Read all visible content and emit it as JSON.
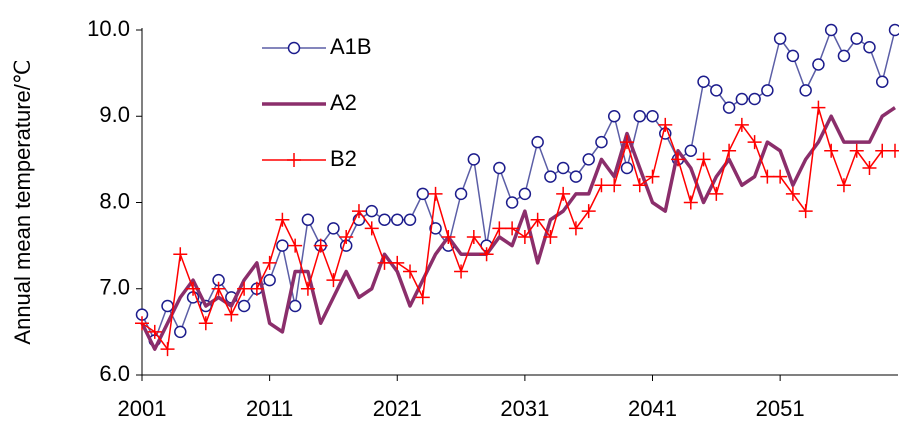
{
  "chart_data": {
    "type": "line",
    "y_label": "Annual mean temperature/℃",
    "x": [
      2001,
      2002,
      2003,
      2004,
      2005,
      2006,
      2007,
      2008,
      2009,
      2010,
      2011,
      2012,
      2013,
      2014,
      2015,
      2016,
      2017,
      2018,
      2019,
      2020,
      2021,
      2022,
      2023,
      2024,
      2025,
      2026,
      2027,
      2028,
      2029,
      2030,
      2031,
      2032,
      2033,
      2034,
      2035,
      2036,
      2037,
      2038,
      2039,
      2040,
      2041,
      2042,
      2043,
      2044,
      2045,
      2046,
      2047,
      2048,
      2049,
      2050,
      2051,
      2052,
      2053,
      2054,
      2055,
      2056,
      2057,
      2058,
      2059,
      2060
    ],
    "series": [
      {
        "name": "A1B",
        "color": "#5b5ea6",
        "marker": "circle",
        "marker_color": "#1c1c8c",
        "line_width": 1.5,
        "values": [
          6.7,
          6.4,
          6.8,
          6.5,
          6.9,
          6.8,
          7.1,
          6.9,
          6.8,
          7.0,
          7.1,
          7.5,
          6.8,
          7.8,
          7.5,
          7.7,
          7.5,
          7.8,
          7.9,
          7.8,
          7.8,
          7.8,
          8.1,
          7.7,
          7.5,
          8.1,
          8.5,
          7.5,
          8.4,
          8.0,
          8.1,
          8.7,
          8.3,
          8.4,
          8.3,
          8.5,
          8.7,
          9.0,
          8.4,
          9.0,
          9.0,
          8.8,
          8.5,
          8.6,
          9.4,
          9.3,
          9.1,
          9.2,
          9.2,
          9.3,
          9.9,
          9.7,
          9.3,
          9.6,
          10.0,
          9.7,
          9.9,
          9.8,
          9.4,
          10.0
        ]
      },
      {
        "name": "A2",
        "color": "#8b2e6b",
        "marker": "none",
        "line_width": 3.5,
        "values": [
          6.6,
          6.3,
          6.6,
          6.9,
          7.1,
          6.8,
          6.9,
          6.8,
          7.1,
          7.3,
          6.6,
          6.5,
          7.2,
          7.2,
          6.6,
          6.9,
          7.2,
          6.9,
          7.0,
          7.4,
          7.2,
          6.8,
          7.1,
          7.4,
          7.6,
          7.4,
          7.4,
          7.4,
          7.6,
          7.5,
          7.9,
          7.3,
          7.8,
          7.9,
          8.1,
          8.1,
          8.5,
          8.3,
          8.8,
          8.4,
          8.0,
          7.9,
          8.6,
          8.4,
          8.0,
          8.3,
          8.5,
          8.2,
          8.3,
          8.7,
          8.6,
          8.2,
          8.5,
          8.7,
          9.0,
          8.7,
          8.7,
          8.7,
          9.0,
          9.1
        ]
      },
      {
        "name": "B2",
        "color": "#ff0000",
        "marker": "plus",
        "marker_color": "#ff0000",
        "line_width": 1.5,
        "values": [
          6.6,
          6.5,
          6.3,
          7.4,
          7.0,
          6.6,
          7.0,
          6.7,
          7.0,
          7.0,
          7.3,
          7.8,
          7.5,
          7.0,
          7.5,
          7.1,
          7.6,
          7.9,
          7.7,
          7.3,
          7.3,
          7.2,
          6.9,
          8.1,
          7.6,
          7.2,
          7.6,
          7.4,
          7.7,
          7.7,
          7.6,
          7.8,
          7.6,
          8.1,
          7.7,
          7.9,
          8.2,
          8.2,
          8.7,
          8.2,
          8.3,
          8.9,
          8.5,
          8.0,
          8.5,
          8.1,
          8.6,
          8.9,
          8.7,
          8.3,
          8.3,
          8.1,
          7.9,
          9.1,
          8.6,
          8.2,
          8.6,
          8.4,
          8.6,
          8.6
        ]
      }
    ],
    "xlim": [
      2001,
      2060
    ],
    "xticks": [
      2001,
      2011,
      2021,
      2031,
      2041,
      2051
    ],
    "ylim": [
      6,
      10
    ],
    "yticks": [
      {
        "value": 6,
        "label": "6.0"
      },
      {
        "value": 7,
        "label": "7.0"
      },
      {
        "value": 8,
        "label": "8.0"
      },
      {
        "value": 9,
        "label": "9.0"
      },
      {
        "value": 10,
        "label": "10.0"
      }
    ],
    "grid": false,
    "legend": "upper left"
  }
}
